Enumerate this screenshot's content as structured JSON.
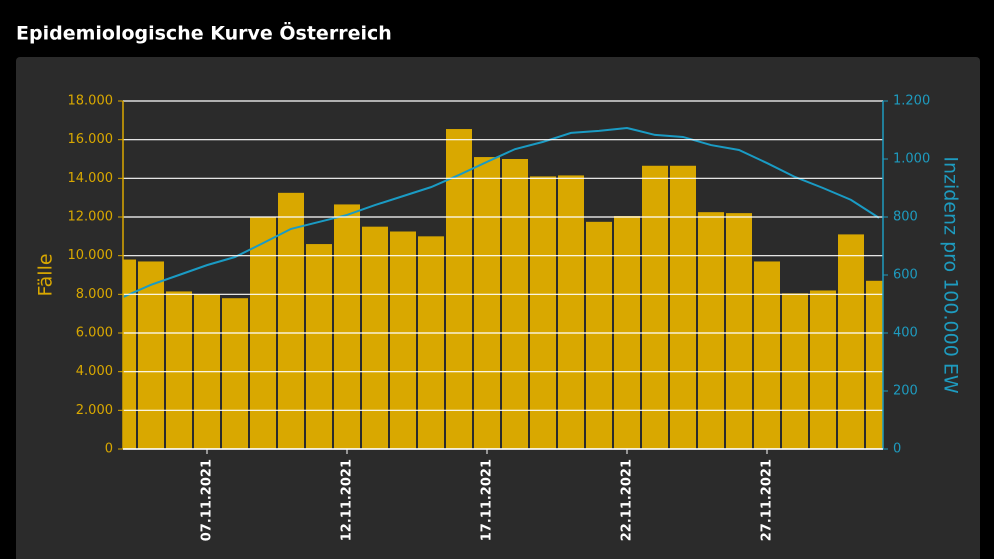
{
  "chart_data": {
    "type": "bar",
    "title": "Epidemiologische Kurve Österreich",
    "ylabel": "Fälle",
    "y2label": "Inzidenz pro 100.000 EW",
    "categories": [
      null,
      null,
      null,
      "07.11.2021",
      null,
      null,
      null,
      null,
      "12.11.2021",
      null,
      null,
      null,
      null,
      "17.11.2021",
      null,
      null,
      null,
      null,
      "22.11.2021",
      null,
      null,
      null,
      null,
      "27.11.2021",
      null,
      null,
      null,
      null
    ],
    "series": [
      {
        "type": "bar",
        "color": "#d9a800",
        "values": [
          9800,
          9700,
          8150,
          8000,
          7800,
          12000,
          13250,
          10600,
          12650,
          11500,
          11250,
          11000,
          16550,
          15100,
          15000,
          14100,
          14150,
          11750,
          12050,
          14650,
          14650,
          12250,
          12200,
          9700,
          8050,
          8200,
          11100,
          8700
        ]
      },
      {
        "type": "line",
        "axis": "y2",
        "color": "#1a9bc4",
        "values": [
          524,
          566,
          600,
          634,
          662,
          710,
          759,
          783,
          807,
          841,
          872,
          903,
          945,
          990,
          1034,
          1059,
          1090,
          1097,
          1107,
          1083,
          1076,
          1048,
          1031,
          986,
          938,
          900,
          859,
          797
        ]
      }
    ],
    "ylim": [
      0,
      18000
    ],
    "yticks": [
      0,
      {
        "value": 2000,
        "label": "2.000"
      },
      {
        "value": 4000,
        "label": "4.000"
      },
      {
        "value": 6000,
        "label": "6.000"
      },
      {
        "value": 8000,
        "label": "8.000"
      },
      {
        "value": 10000,
        "label": "10.000"
      },
      {
        "value": 12000,
        "label": "12.000"
      },
      {
        "value": 14000,
        "label": "14.000"
      },
      {
        "value": 16000,
        "label": "16.000"
      },
      {
        "value": 18000,
        "label": "18.000"
      }
    ],
    "y2lim": [
      0,
      1200
    ],
    "y2ticks": [
      0,
      200,
      400,
      600,
      800,
      {
        "value": 1000,
        "label": "1.000"
      },
      {
        "value": 1200,
        "label": "1.200"
      }
    ],
    "grid": true
  }
}
